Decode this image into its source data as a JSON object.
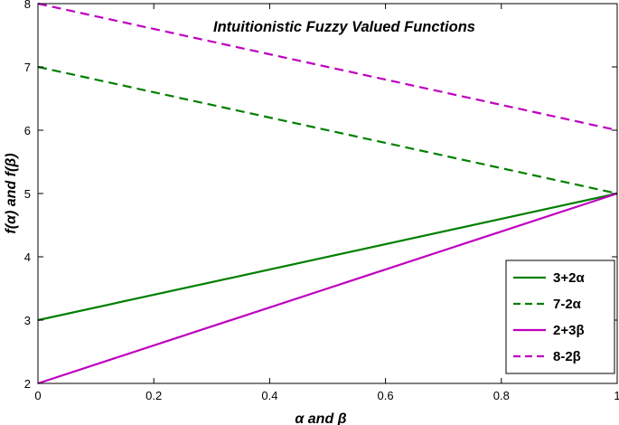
{
  "chart_data": {
    "type": "line",
    "title": "Intuitionistic Fuzzy Valued Functions",
    "xlabel": "α  and  β",
    "ylabel": "f(α)  and  f(β)",
    "xlim": [
      0,
      1
    ],
    "ylim": [
      2,
      8
    ],
    "xticks": [
      "0",
      "0.2",
      "0.4",
      "0.6",
      "0.8",
      "1"
    ],
    "yticks": [
      "2",
      "3",
      "4",
      "5",
      "6",
      "7",
      "8"
    ],
    "grid": false,
    "legend_position": "bottom-right",
    "series": [
      {
        "name": "3+2α",
        "color": "#007f00",
        "dash": "solid",
        "x": [
          0,
          1
        ],
        "y": [
          3,
          5
        ]
      },
      {
        "name": "7-2α",
        "color": "#007f00",
        "dash": "dashed",
        "x": [
          0,
          1
        ],
        "y": [
          7,
          5
        ]
      },
      {
        "name": "2+3β",
        "color": "#bf00bf",
        "dash": "solid",
        "x": [
          0,
          1
        ],
        "y": [
          2,
          5
        ]
      },
      {
        "name": "8-2β",
        "color": "#bf00bf",
        "dash": "dashed",
        "x": [
          0,
          1
        ],
        "y": [
          8,
          6
        ]
      }
    ]
  }
}
